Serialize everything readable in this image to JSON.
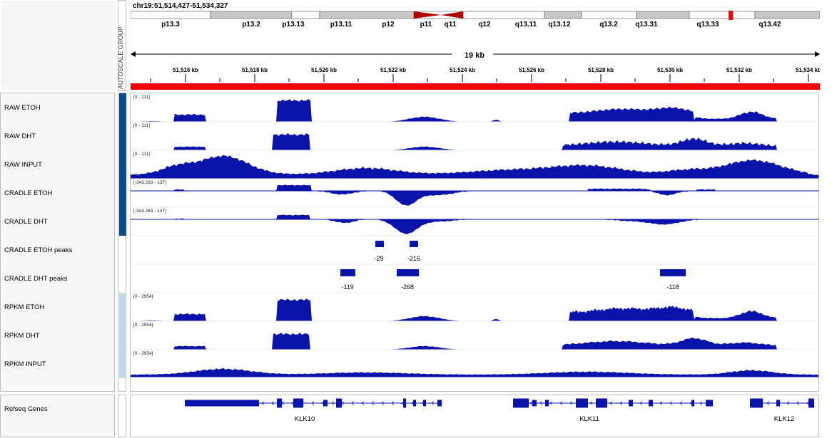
{
  "locus": "chr19:51,514,427-51,534,327",
  "autoscale_label": "AUTOSCALE GROUP",
  "ideogram_bands": [
    "p13.3",
    "p13.2",
    "p13.13",
    "p13.11",
    "p12",
    "p11",
    "q11",
    "q12",
    "q13.11",
    "q13.12",
    "q13.2",
    "q13.31",
    "q13.33",
    "q13.42"
  ],
  "ruler": {
    "span_label": "19 kb",
    "ticks": [
      "51,516 kb",
      "51,518 kb",
      "51,520 kb",
      "51,522 kb",
      "51,524 kb",
      "51,526 kb",
      "51,528 kb",
      "51,530 kb",
      "51,532 kb",
      "51,534 kb"
    ]
  },
  "tracks": [
    {
      "name": "RAW ETOH",
      "scale": "[0 - 111]"
    },
    {
      "name": "RAW DHT",
      "scale": "[0 - 111]"
    },
    {
      "name": "RAW INPUT",
      "scale": "[0 - 111]"
    },
    {
      "name": "CRADLE ETOH",
      "scale": "[-343.263 - 137]"
    },
    {
      "name": "CRADLE DHT",
      "scale": "[-343.263 - 137]"
    },
    {
      "name": "CRADLE ETOH peaks",
      "scale": ""
    },
    {
      "name": "CRADLE DHT peaks",
      "scale": ""
    },
    {
      "name": "RPKM ETOH",
      "scale": "[0 - 2954]"
    },
    {
      "name": "RPKM DHT",
      "scale": "[0 - 2954]"
    },
    {
      "name": "RPKM INPUT",
      "scale": "[0 - 2954]"
    }
  ],
  "peaks_etoh": [
    "-29",
    "-216"
  ],
  "peaks_dht": [
    "-119",
    "-268",
    "-118"
  ],
  "genes_track_name": "Refseq Genes",
  "genes": [
    "KLK10",
    "KLK11",
    "KLK12"
  ],
  "colors": {
    "signal": "#0a14aa",
    "attr_dark": "#0c4a96",
    "attr_light": "#c4d8ec",
    "region": "#f00000"
  }
}
